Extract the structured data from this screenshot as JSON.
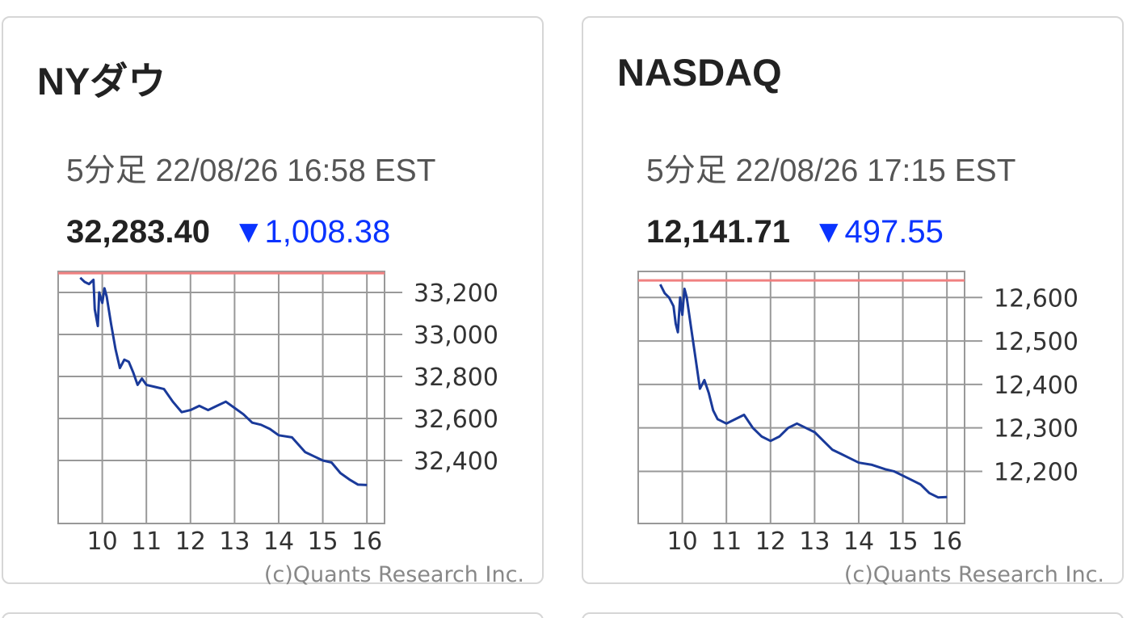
{
  "cards": [
    {
      "title": "NYダウ",
      "subtitle": "5分足 22/08/26 16:58 EST",
      "price": "32,283.40",
      "change": "▼1,008.38",
      "copyright": "(c)Quants Research Inc."
    },
    {
      "title": "NASDAQ",
      "subtitle": "5分足 22/08/26 17:15 EST",
      "price": "12,141.71",
      "change": "▼497.55",
      "copyright": "(c)Quants Research Inc."
    }
  ],
  "colors": {
    "line": "#1a3a9a",
    "reference_line": "#f08080",
    "change_down": "#0a33ff",
    "grid": "#999999"
  },
  "chart_data": [
    {
      "type": "line",
      "interval": "5分足",
      "x_ticks": [
        10,
        11,
        12,
        13,
        14,
        15,
        16
      ],
      "x_tick_labels": [
        "10",
        "11",
        "12",
        "13",
        "14",
        "15",
        "16"
      ],
      "xlim": [
        9.0,
        16.4
      ],
      "y_ticks": [
        32400,
        32600,
        32800,
        33000,
        33200
      ],
      "y_tick_labels": [
        "32,400",
        "32,600",
        "32,800",
        "33,000",
        "33,200"
      ],
      "ylim": [
        32100,
        33300
      ],
      "reference_value": 33291.78,
      "grid": true,
      "series": [
        {
          "x": [
            9.5,
            9.6,
            9.7,
            9.8,
            9.83,
            9.9,
            9.93,
            10.0,
            10.05,
            10.1,
            10.2,
            10.3,
            10.4,
            10.5,
            10.6,
            10.7,
            10.8,
            10.9,
            11.0,
            11.2,
            11.4,
            11.6,
            11.8,
            12.0,
            12.2,
            12.4,
            12.6,
            12.8,
            13.0,
            13.2,
            13.4,
            13.6,
            13.8,
            14.0,
            14.3,
            14.6,
            14.8,
            15.0,
            15.2,
            15.4,
            15.6,
            15.8,
            16.0
          ],
          "y": [
            33270,
            33250,
            33240,
            33260,
            33120,
            33040,
            33200,
            33150,
            33220,
            33180,
            33050,
            32930,
            32840,
            32880,
            32870,
            32820,
            32760,
            32790,
            32760,
            32750,
            32740,
            32680,
            32630,
            32640,
            32660,
            32640,
            32660,
            32680,
            32650,
            32620,
            32580,
            32570,
            32550,
            32520,
            32510,
            32440,
            32420,
            32400,
            32390,
            32340,
            32310,
            32285,
            32283
          ]
        }
      ]
    },
    {
      "type": "line",
      "interval": "5分足",
      "x_ticks": [
        10,
        11,
        12,
        13,
        14,
        15,
        16
      ],
      "x_tick_labels": [
        "10",
        "11",
        "12",
        "13",
        "14",
        "15",
        "16"
      ],
      "xlim": [
        9.0,
        16.4
      ],
      "y_ticks": [
        12200,
        12300,
        12400,
        12500,
        12600
      ],
      "y_tick_labels": [
        "12,200",
        "12,300",
        "12,400",
        "12,500",
        "12,600"
      ],
      "ylim": [
        12080,
        12660
      ],
      "reference_value": 12639.26,
      "grid": true,
      "series": [
        {
          "x": [
            9.5,
            9.6,
            9.7,
            9.8,
            9.85,
            9.9,
            9.95,
            10.0,
            10.05,
            10.1,
            10.2,
            10.3,
            10.4,
            10.5,
            10.6,
            10.7,
            10.8,
            11.0,
            11.2,
            11.4,
            11.6,
            11.8,
            12.0,
            12.2,
            12.4,
            12.6,
            12.8,
            13.0,
            13.2,
            13.4,
            13.6,
            13.8,
            14.0,
            14.3,
            14.6,
            14.8,
            15.0,
            15.2,
            15.4,
            15.6,
            15.8,
            16.0
          ],
          "y": [
            12630,
            12610,
            12600,
            12580,
            12540,
            12520,
            12600,
            12560,
            12620,
            12600,
            12530,
            12460,
            12390,
            12410,
            12380,
            12340,
            12320,
            12310,
            12320,
            12330,
            12300,
            12280,
            12270,
            12280,
            12300,
            12310,
            12300,
            12290,
            12270,
            12250,
            12240,
            12230,
            12220,
            12215,
            12205,
            12200,
            12190,
            12180,
            12170,
            12150,
            12140,
            12141
          ]
        }
      ]
    }
  ]
}
